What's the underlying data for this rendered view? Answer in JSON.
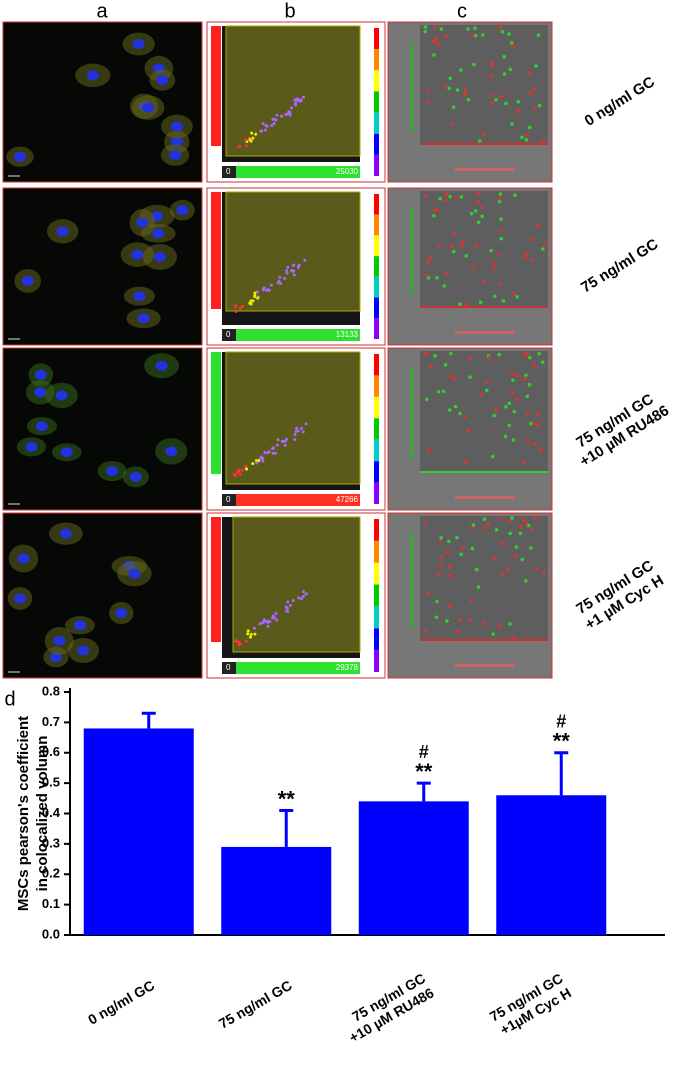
{
  "figure": {
    "panel_letters": [
      "a",
      "b",
      "c",
      "d"
    ],
    "rows": [
      {
        "label": "0 ng/ml GC",
        "scatter_range": [
          0,
          25030
        ]
      },
      {
        "label": "75 ng/ml GC",
        "scatter_range": [
          0,
          13133
        ]
      },
      {
        "label": "75 ng/ml GC\n+10 µM RU486",
        "scatter_range": [
          0,
          47266
        ]
      },
      {
        "label": "75 ng/ml GC\n+1 µM Cyc H",
        "scatter_range": [
          0,
          29378
        ]
      }
    ]
  },
  "chart_data": {
    "type": "bar",
    "ylabel": [
      "MSCs pearson's coefficient",
      "in colocalized volumn"
    ],
    "categories": [
      "0 ng/ml GC",
      "75 ng/ml GC",
      "75 ng/ml GC\n+10 µM RU486",
      "75 ng/ml GC\n+1µM Cyc H"
    ],
    "values": [
      0.68,
      0.29,
      0.44,
      0.46
    ],
    "errors": [
      0.05,
      0.12,
      0.06,
      0.14
    ],
    "significance": [
      null,
      "**",
      "**",
      "**"
    ],
    "significance_vs_gc": [
      null,
      null,
      "#",
      "#"
    ],
    "color": "#0000ff",
    "ylim": [
      0,
      0.8
    ],
    "yticks": [
      {
        "value": 0,
        "label": "0.0"
      },
      0.1,
      0.2,
      0.3,
      0.4,
      0.5,
      0.6,
      0.7,
      0.8
    ]
  }
}
